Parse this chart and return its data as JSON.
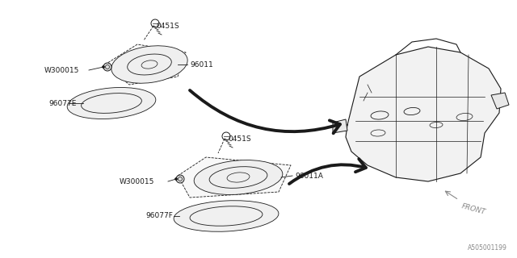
{
  "bg_color": "#ffffff",
  "line_color": "#1a1a1a",
  "figure_id": "A505001199",
  "labels": {
    "top_screw": "0451S",
    "top_washer": "W300015",
    "top_cover": "96011",
    "top_gasket": "96077E",
    "bot_screw": "0451S",
    "bot_washer": "W300015",
    "bot_cover": "96011A",
    "bot_gasket": "96077F",
    "front": "FRONT"
  }
}
